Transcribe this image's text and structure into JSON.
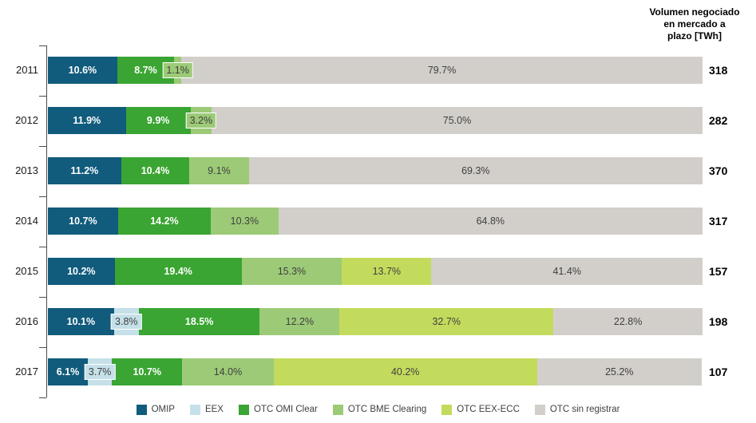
{
  "chart_data": {
    "type": "bar",
    "orientation": "horizontal-stacked",
    "value_suffix": "%",
    "grid": false,
    "legend_position": "bottom",
    "categories": [
      "2011",
      "2012",
      "2013",
      "2014",
      "2015",
      "2016",
      "2017"
    ],
    "series": [
      {
        "name": "OMIP",
        "color": "#115b7c",
        "label_color": "#ffffff",
        "bold": true,
        "values": [
          10.6,
          11.9,
          11.2,
          10.7,
          10.2,
          10.1,
          6.1
        ]
      },
      {
        "name": "EEX",
        "color": "#c5e0e8",
        "label_color": "#404040",
        "bold": false,
        "values": [
          null,
          null,
          null,
          null,
          null,
          3.8,
          3.7
        ]
      },
      {
        "name": "OTC OMI Clear",
        "color": "#3aa532",
        "label_color": "#ffffff",
        "bold": true,
        "values": [
          8.7,
          9.9,
          10.4,
          14.2,
          19.4,
          18.5,
          10.7
        ]
      },
      {
        "name": "OTC BME Clearing",
        "color": "#9cca77",
        "label_color": "#404040",
        "bold": false,
        "values": [
          1.1,
          3.2,
          9.1,
          10.3,
          15.3,
          12.2,
          14.0
        ]
      },
      {
        "name": "OTC EEX-ECC",
        "color": "#c3db5c",
        "label_color": "#404040",
        "bold": false,
        "values": [
          null,
          null,
          null,
          null,
          13.7,
          32.7,
          40.2
        ]
      },
      {
        "name": "OTC sin registrar",
        "color": "#d2cfca",
        "label_color": "#404040",
        "bold": false,
        "values": [
          79.7,
          75.0,
          69.3,
          64.8,
          41.4,
          22.8,
          25.2
        ]
      }
    ],
    "right_axis": {
      "title": "Volumen negociado en mercado a plazo [TWh]",
      "title_lines": [
        "Volumen negociado",
        "en mercado a",
        "plazo [TWh]"
      ],
      "values": [
        318,
        282,
        370,
        317,
        157,
        198,
        107
      ]
    }
  }
}
